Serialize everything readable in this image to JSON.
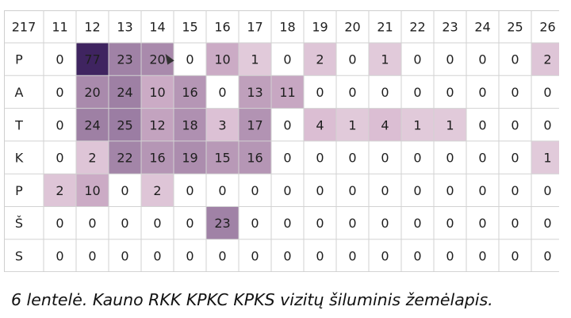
{
  "chart_data": {
    "type": "heatmap",
    "corner_label": "217",
    "x_categories": [
      "11",
      "12",
      "13",
      "14",
      "15",
      "16",
      "17",
      "18",
      "19",
      "20",
      "21",
      "22",
      "23",
      "24",
      "25",
      "26"
    ],
    "y_categories": [
      "P",
      "A",
      "T",
      "K",
      "P",
      "Š",
      "S"
    ],
    "values": [
      [
        0,
        77,
        23,
        20,
        0,
        10,
        1,
        0,
        2,
        0,
        1,
        0,
        0,
        0,
        0,
        2
      ],
      [
        0,
        20,
        24,
        10,
        16,
        0,
        13,
        11,
        0,
        0,
        0,
        0,
        0,
        0,
        0,
        0
      ],
      [
        0,
        24,
        25,
        12,
        18,
        3,
        17,
        0,
        4,
        1,
        4,
        1,
        1,
        0,
        0,
        0
      ],
      [
        0,
        2,
        22,
        16,
        19,
        15,
        16,
        0,
        0,
        0,
        0,
        0,
        0,
        0,
        0,
        1
      ],
      [
        2,
        10,
        0,
        2,
        0,
        0,
        0,
        0,
        0,
        0,
        0,
        0,
        0,
        0,
        0,
        0
      ],
      [
        0,
        0,
        0,
        0,
        0,
        23,
        0,
        0,
        0,
        0,
        0,
        0,
        0,
        0,
        0,
        0
      ],
      [
        0,
        0,
        0,
        0,
        0,
        0,
        0,
        0,
        0,
        0,
        0,
        0,
        0,
        0,
        0,
        0
      ]
    ],
    "color_scale": {
      "low": "#ffffff",
      "mid": "#d6b6cd",
      "high": "#3f2460"
    },
    "grid": true
  },
  "caption": "6 lentelė. Kauno RKK KPKC KPKS vizitų šiluminis žemėlapis."
}
